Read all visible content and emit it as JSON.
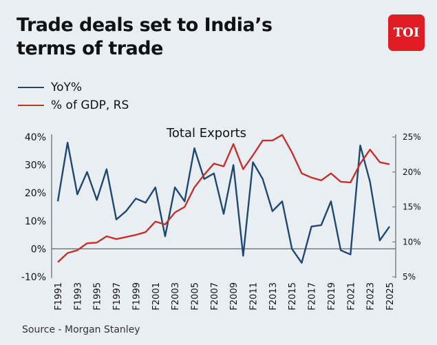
{
  "title": "Trade deals set to India’s terms of trade",
  "logo": "TOI",
  "source": "Source - Morgan Stanley",
  "colors": {
    "yoy": "#1f4773",
    "gdp": "#c4302b",
    "logo_bg": "#e01d24"
  },
  "chart_data": {
    "type": "line",
    "title": "Total Exports",
    "legend_position": "top-left",
    "grid": false,
    "x": [
      "F1991",
      "F1992",
      "F1993",
      "F1994",
      "F1995",
      "F1996",
      "F1997",
      "F1998",
      "F1999",
      "F2000",
      "F2001",
      "F2002",
      "F2003",
      "F2004",
      "F2005",
      "F2006",
      "F2007",
      "F2008",
      "F2009",
      "F2010",
      "F2011",
      "F2012",
      "F2013",
      "F2014",
      "F2015",
      "F2016",
      "F2017",
      "F2018",
      "F2019",
      "F2020",
      "F2021",
      "F2022",
      "F2023",
      "F2024",
      "F2025"
    ],
    "x_tick_labels": [
      "F1991",
      "F1993",
      "F1995",
      "F1997",
      "F1999",
      "F2001",
      "F2003",
      "F2005",
      "F2007",
      "F2009",
      "F2011",
      "F2013",
      "F2015",
      "F2017",
      "F2019",
      "F2021",
      "F2023",
      "F2025"
    ],
    "left_axis": {
      "ylim": [
        -10,
        40
      ],
      "ticks": [
        "-10%",
        "0%",
        "10%",
        "20%",
        "30%",
        "40%"
      ]
    },
    "right_axis": {
      "ylim": [
        5,
        25
      ],
      "ticks": [
        "5%",
        "10%",
        "15%",
        "20%",
        "25%"
      ]
    },
    "series": [
      {
        "name": "YoY%",
        "axis": "left",
        "values": [
          17,
          38,
          19.5,
          27.5,
          17.5,
          28.5,
          10.5,
          13.5,
          18,
          16.5,
          22,
          4.5,
          22,
          17,
          36,
          25,
          27,
          12.5,
          30,
          -2.5,
          31,
          25,
          13.5,
          17,
          0,
          -5,
          8,
          8.5,
          17,
          -0.5,
          -2,
          37,
          24,
          3,
          8
        ]
      },
      {
        "name": "% of GDP, RS",
        "axis": "right",
        "values": [
          7.1,
          8.4,
          8.8,
          9.8,
          9.9,
          10.8,
          10.4,
          10.7,
          11.0,
          11.4,
          12.9,
          12.5,
          14.2,
          15.0,
          17.8,
          19.6,
          21.2,
          20.8,
          24.0,
          20.4,
          22.4,
          24.5,
          24.5,
          25.3,
          22.8,
          19.8,
          19.2,
          18.8,
          19.8,
          18.6,
          18.5,
          21.2,
          23.2,
          21.4,
          21.1
        ]
      }
    ]
  }
}
